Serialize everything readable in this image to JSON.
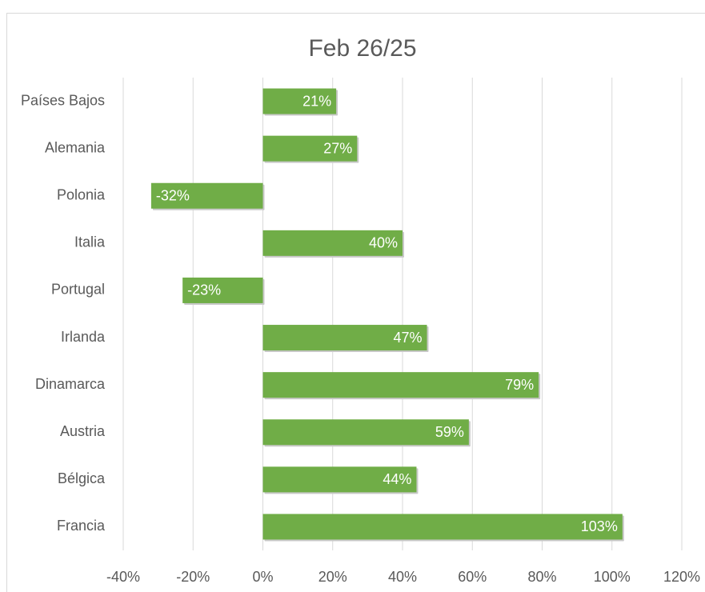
{
  "chart_data": {
    "type": "barh",
    "title": "Feb 26/25",
    "categories": [
      "Países Bajos",
      "Alemania",
      "Polonia",
      "Italia",
      "Portugal",
      "Irlanda",
      "Dinamarca",
      "Austria",
      "Bélgica",
      "Francia"
    ],
    "values": [
      21,
      27,
      -32,
      40,
      -23,
      47,
      79,
      59,
      44,
      103
    ],
    "value_labels": [
      "21%",
      "27%",
      "-32%",
      "40%",
      "-23%",
      "47%",
      "79%",
      "59%",
      "44%",
      "103%"
    ],
    "color": "#70ad47",
    "xlim": [
      -40,
      120
    ],
    "xticks": [
      {
        "value": -40,
        "label": "-40%"
      },
      {
        "value": -20,
        "label": "-20%"
      },
      {
        "value": 0,
        "label": "0%"
      },
      {
        "value": 20,
        "label": "20%"
      },
      {
        "value": 40,
        "label": "40%"
      },
      {
        "value": 60,
        "label": "60%"
      },
      {
        "value": 80,
        "label": "80%"
      },
      {
        "value": 100,
        "label": "100%"
      },
      {
        "value": 120,
        "label": "120%"
      }
    ],
    "grid": true
  }
}
